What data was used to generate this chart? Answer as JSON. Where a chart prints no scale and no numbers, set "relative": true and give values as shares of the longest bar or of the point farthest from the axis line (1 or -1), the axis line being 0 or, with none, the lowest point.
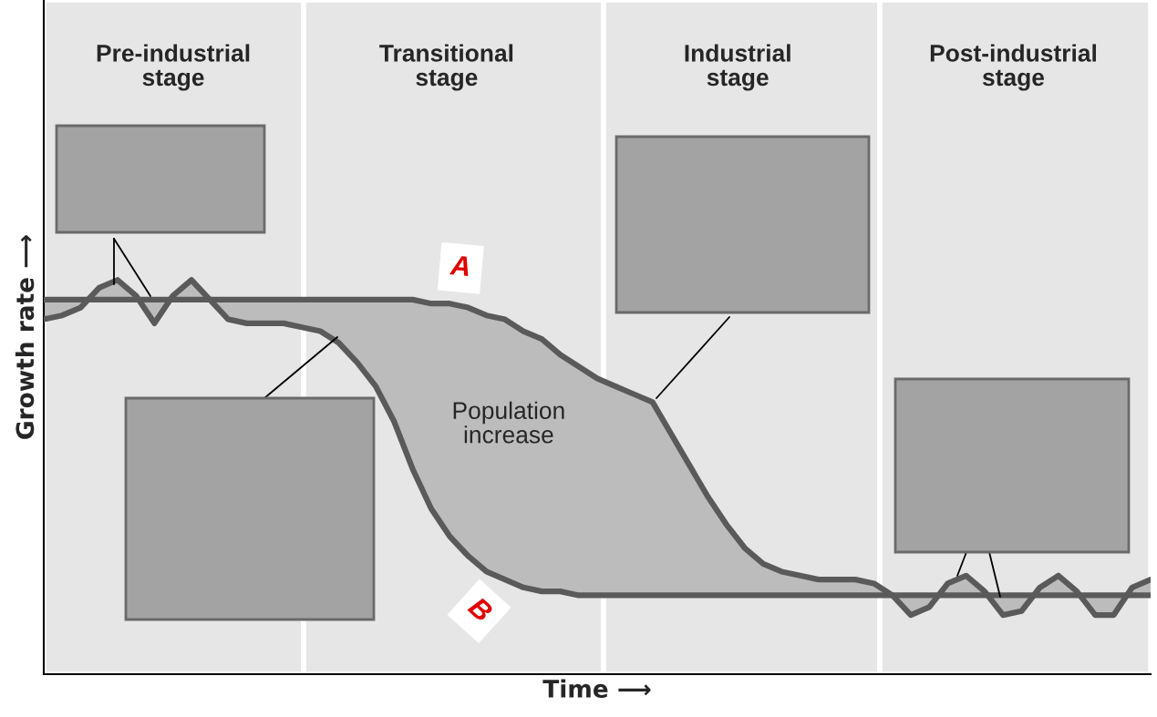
{
  "chart_data": {
    "type": "line",
    "relative": true,
    "tick_labels": false,
    "xlabel": "Time ⟶",
    "ylabel": "Growth rate ⟶",
    "categories": [
      null,
      null,
      null,
      null,
      null,
      null,
      null,
      null,
      null,
      null,
      null,
      null,
      null,
      null,
      null,
      null,
      null,
      null,
      null,
      null,
      null,
      null,
      null,
      null,
      null,
      null,
      null,
      null,
      null,
      null,
      null,
      null,
      null,
      null,
      null,
      null,
      null,
      null,
      null,
      null,
      null,
      null,
      null,
      null,
      null,
      null,
      null,
      null,
      null,
      null,
      null,
      null,
      null,
      null,
      null,
      null,
      null,
      null,
      null,
      null,
      null
    ],
    "annotations": [
      "Pre-industrial\nstage",
      "Transitional\nstage",
      "Industrial\nstage",
      "Post-industrial\nstage",
      "Population\nincrease"
    ],
    "series": [
      {
        "name": "A",
        "color": "#5a5a5a",
        "values": [
          0.95,
          0.95,
          0.95,
          0.95,
          0.95,
          0.95,
          0.95,
          0.95,
          0.95,
          0.95,
          0.95,
          0.95,
          0.95,
          0.95,
          0.95,
          0.95,
          0.95,
          0.95,
          0.95,
          0.95,
          0.95,
          0.94,
          0.94,
          0.93,
          0.91,
          0.9,
          0.87,
          0.85,
          0.81,
          0.78,
          0.75,
          0.73,
          0.71,
          0.69,
          0.61,
          0.53,
          0.45,
          0.38,
          0.32,
          0.28,
          0.26,
          0.25,
          0.24,
          0.24,
          0.24,
          0.23,
          0.2,
          0.15,
          0.17,
          0.23,
          0.25,
          0.21,
          0.15,
          0.16,
          0.22,
          0.25,
          0.21,
          0.15,
          0.15,
          0.22,
          0.24
        ],
        "lower": [
          0.9,
          0.91,
          0.93,
          0.98,
          1.0,
          0.96,
          0.89,
          0.96,
          1.0,
          0.95,
          0.9,
          0.89,
          0.89,
          0.89,
          0.88,
          0.87,
          0.84,
          0.79,
          0.73,
          0.64,
          0.52,
          0.42,
          0.35,
          0.3,
          0.26,
          0.24,
          0.22,
          0.21,
          0.21,
          0.2,
          0.2,
          0.2,
          0.2,
          0.2,
          0.2,
          0.2,
          0.2,
          0.2,
          0.2,
          0.2,
          0.2,
          0.2,
          0.2,
          0.2,
          0.2,
          0.2,
          0.2,
          0.2,
          0.2,
          0.2,
          0.2,
          0.2,
          0.2,
          0.2,
          0.2,
          0.2,
          0.2,
          0.2,
          0.2,
          0.2,
          0.2
        ],
        "upper": [
          0.95,
          0.95,
          0.95,
          0.95,
          0.95,
          0.95,
          0.95,
          0.95,
          0.95,
          0.95,
          0.95,
          0.95,
          0.95,
          0.95,
          0.95,
          0.95,
          0.95,
          0.95,
          0.95,
          0.95,
          0.95,
          0.94,
          0.94,
          0.93,
          0.91,
          0.9,
          0.87,
          0.85,
          0.81,
          0.78,
          0.75,
          0.73,
          0.71,
          0.69,
          0.61,
          0.53,
          0.45,
          0.38,
          0.32,
          0.28,
          0.26,
          0.25,
          0.24,
          0.24,
          0.24,
          0.23,
          0.2,
          0.15,
          0.17,
          0.23,
          0.25,
          0.21,
          0.15,
          0.16,
          0.22,
          0.25,
          0.21,
          0.15,
          0.15,
          0.22,
          0.24
        ]
      },
      {
        "name": "B",
        "color": "#5a5a5a",
        "values": [
          0.9,
          0.91,
          0.93,
          0.98,
          1.0,
          0.96,
          0.89,
          0.96,
          1.0,
          0.95,
          0.9,
          0.89,
          0.89,
          0.89,
          0.88,
          0.87,
          0.84,
          0.79,
          0.73,
          0.64,
          0.52,
          0.42,
          0.35,
          0.3,
          0.26,
          0.24,
          0.22,
          0.21,
          0.21,
          0.2,
          0.2,
          0.2,
          0.2,
          0.2,
          0.2,
          0.2,
          0.2,
          0.2,
          0.2,
          0.2,
          0.2,
          0.2,
          0.2,
          0.2,
          0.2,
          0.2,
          0.2,
          0.2,
          0.2,
          0.2,
          0.2,
          0.2,
          0.2,
          0.2,
          0.2,
          0.2,
          0.2,
          0.2,
          0.2,
          0.2,
          0.2
        ]
      }
    ]
  }
}
